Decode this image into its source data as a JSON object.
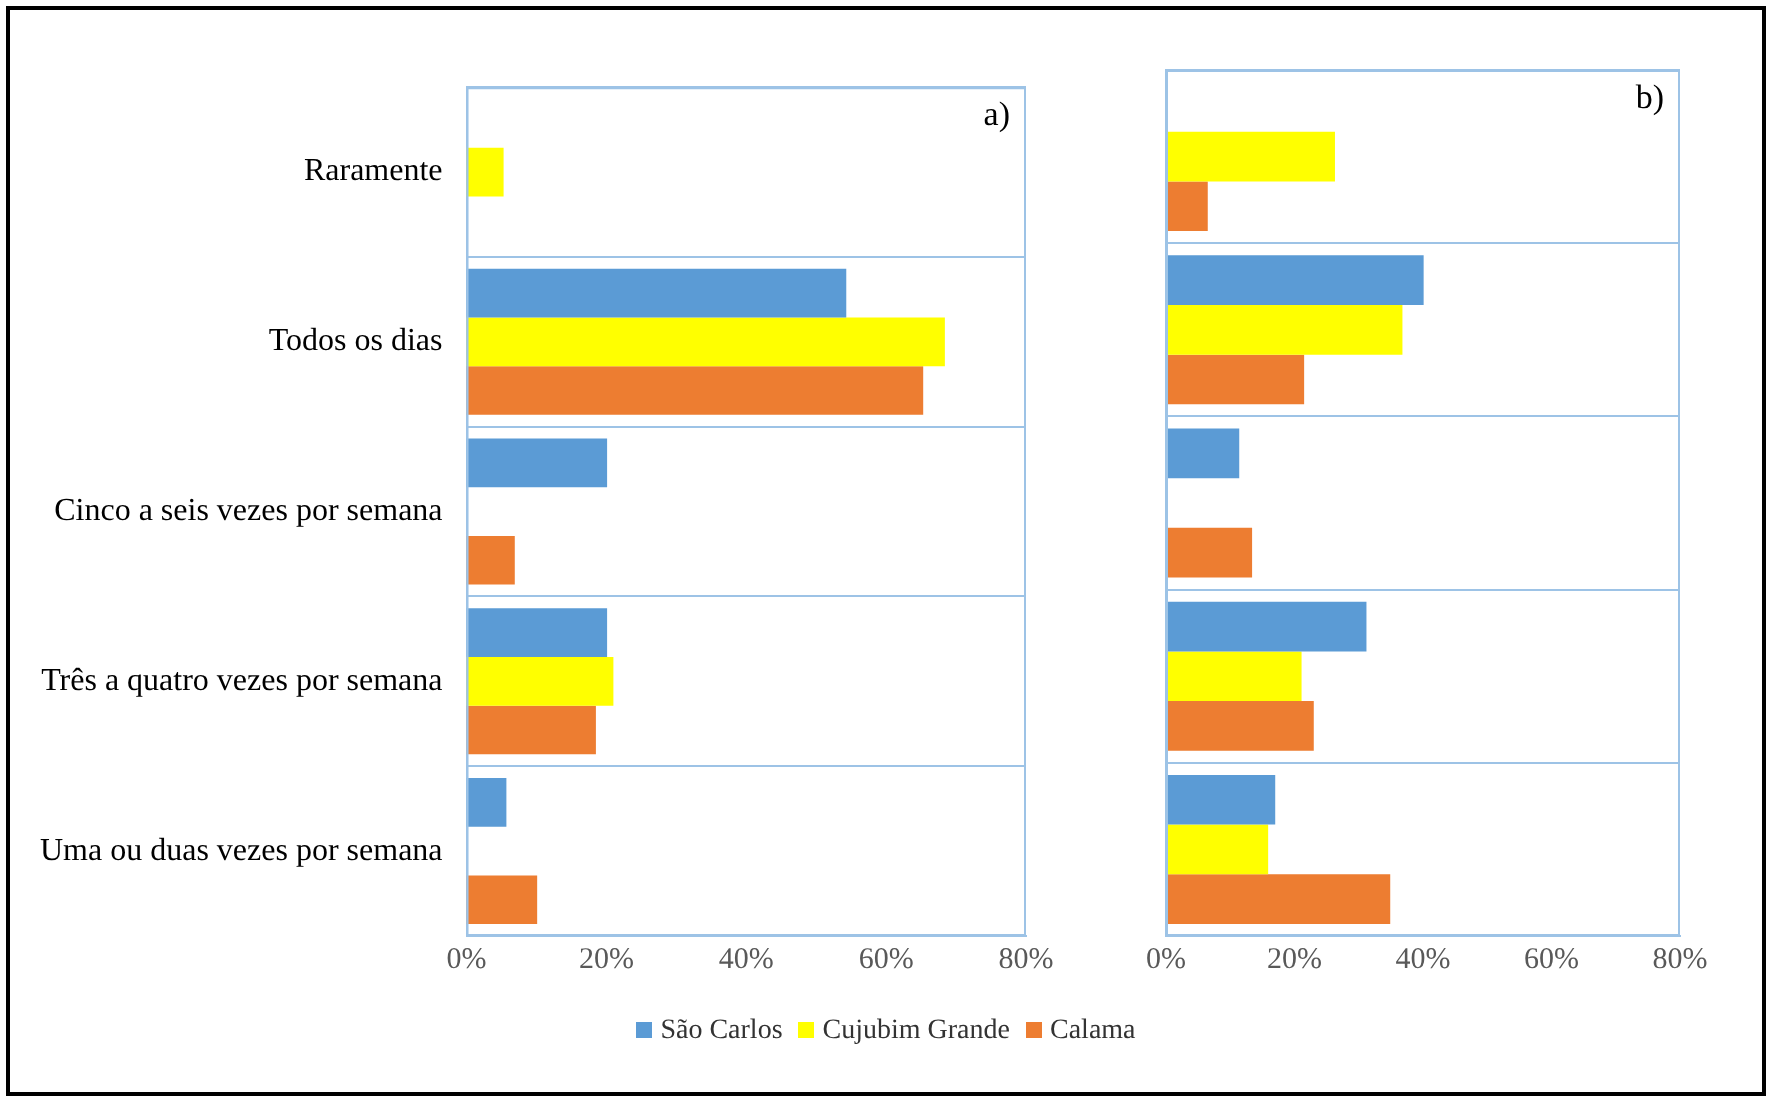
{
  "chart_data": [
    {
      "type": "bar",
      "orientation": "horizontal",
      "categories": [
        "Raramente",
        "Todos os dias",
        "Cinco a seis vezes por semana",
        "Três a quatro vezes por semana",
        "Uma ou duas vezes por semana"
      ],
      "series": [
        {
          "name": "São Carlos",
          "color": "#5b9bd5",
          "values": [
            0,
            54.3,
            20.1,
            20.1,
            5.7
          ]
        },
        {
          "name": "Cujubim Grande",
          "color": "#ffff00",
          "values": [
            5.3,
            68.4,
            0,
            21,
            0
          ]
        },
        {
          "name": "Calama",
          "color": "#ed7d31",
          "values": [
            0,
            65.3,
            6.9,
            18.5,
            10.1
          ]
        }
      ],
      "xlim": [
        0,
        80
      ],
      "xticks": [
        {
          "value": 0,
          "label": "0%"
        },
        {
          "value": 20,
          "label": "20%"
        },
        {
          "value": 40,
          "label": "40%"
        },
        {
          "value": 60,
          "label": "60%"
        },
        {
          "value": 80,
          "label": "80%"
        }
      ],
      "annotations": [
        "a)"
      ],
      "grid": "y",
      "legend": "bottom"
    },
    {
      "type": "bar",
      "orientation": "horizontal",
      "categories": [
        null,
        null,
        null,
        null,
        null
      ],
      "series": [
        {
          "color": "#5b9bd5",
          "values": [
            0,
            40.1,
            11.4,
            31.2,
            17
          ]
        },
        {
          "color": "#ffff00",
          "values": [
            26.3,
            36.8,
            0,
            21.1,
            15.9
          ]
        },
        {
          "color": "#ed7d31",
          "values": [
            6.5,
            21.5,
            13.4,
            23,
            34.9
          ]
        }
      ],
      "xlim": [
        0,
        80
      ],
      "xticks": [
        {
          "value": 0,
          "label": "0%"
        },
        {
          "value": 20,
          "label": "20%"
        },
        {
          "value": 40,
          "label": "40%"
        },
        {
          "value": 60,
          "label": "60%"
        },
        {
          "value": 80,
          "label": "80%"
        }
      ],
      "annotations": [
        "b)"
      ],
      "grid": "y",
      "tick_labels": "x"
    }
  ]
}
